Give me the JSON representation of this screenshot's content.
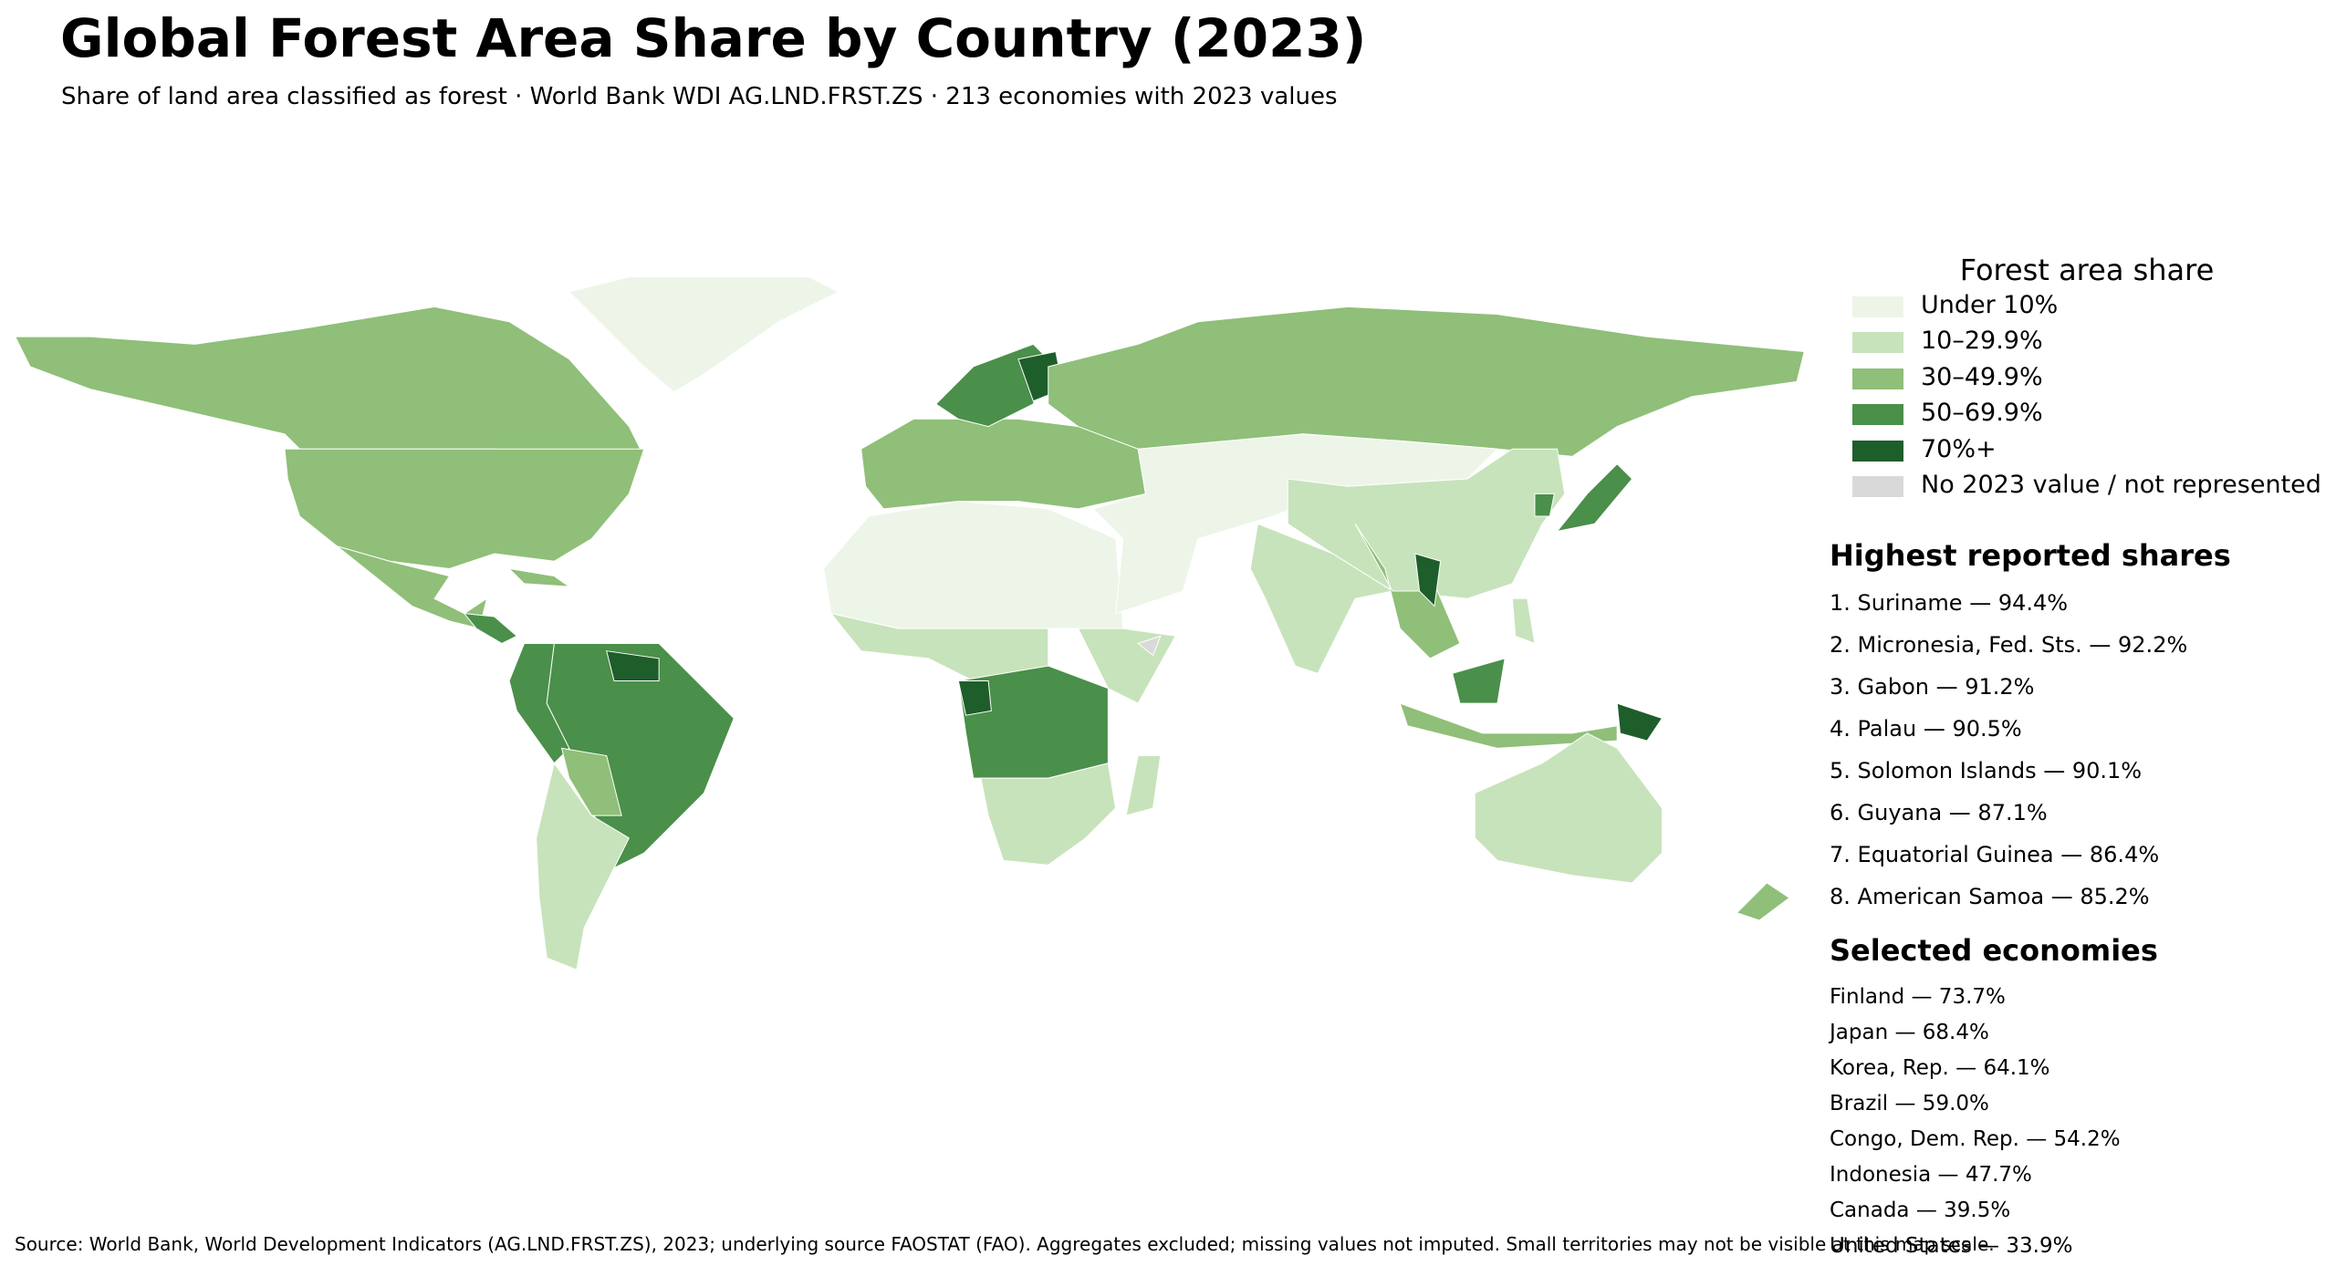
{
  "title": "Global Forest Area Share by Country (2023)",
  "subtitle": "Share of land area classified as forest · World Bank WDI AG.LND.FRST.ZS · 213 economies with 2023 values",
  "legend": {
    "title": "Forest area share",
    "items": [
      {
        "label": "Under 10%",
        "color": "#edf5e9"
      },
      {
        "label": "10–29.9%",
        "color": "#c7e3bb"
      },
      {
        "label": "30–49.9%",
        "color": "#8fbf78"
      },
      {
        "label": "50–69.9%",
        "color": "#4a8f4a"
      },
      {
        "label": "70%+",
        "color": "#1e5e2b"
      },
      {
        "label": "No 2023 value / not represented",
        "color": "#d9d9d9"
      }
    ]
  },
  "highest": {
    "title": "Highest reported shares",
    "items": [
      "1. Suriname — 94.4%",
      "2. Micronesia, Fed. Sts. — 92.2%",
      "3. Gabon — 91.2%",
      "4. Palau — 90.5%",
      "5. Solomon Islands — 90.1%",
      "6. Guyana — 87.1%",
      "7. Equatorial Guinea — 86.4%",
      "8. American Samoa — 85.2%"
    ]
  },
  "selected": {
    "title": "Selected economies",
    "items": [
      "Finland — 73.7%",
      "Japan — 68.4%",
      "Korea, Rep. — 64.1%",
      "Brazil — 59.0%",
      "Congo, Dem. Rep. — 54.2%",
      "Indonesia — 47.7%",
      "Canada — 39.5%",
      "United States — 33.9%"
    ]
  },
  "source": "Source: World Bank, World Development Indicators (AG.LND.FRST.ZS), 2023; underlying source FAOSTAT (FAO). Aggregates excluded; missing values not imputed. Small territories may not be visible at this map scale."
}
